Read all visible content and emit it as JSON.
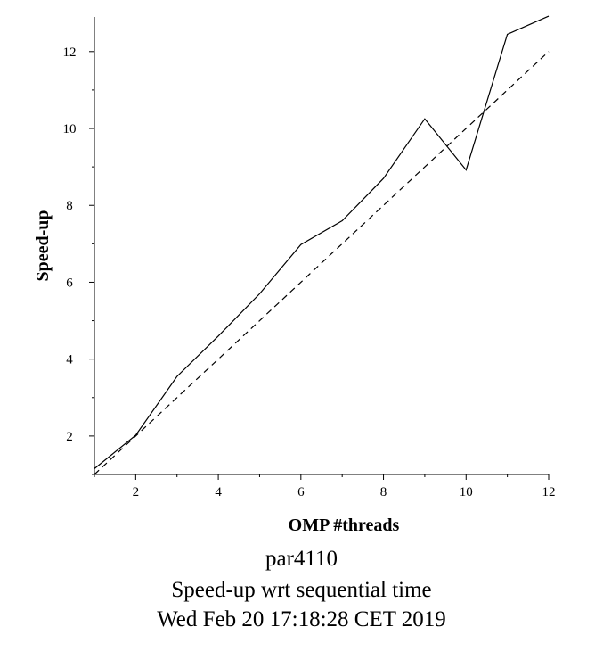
{
  "chart_data": {
    "type": "line",
    "xlabel": "OMP #threads",
    "ylabel": "Speed-up",
    "xlim": [
      1,
      12
    ],
    "ylim": [
      1,
      12.9
    ],
    "x_ticks": [
      2,
      4,
      6,
      8,
      10,
      12
    ],
    "y_ticks": [
      2,
      4,
      6,
      8,
      10,
      12
    ],
    "grid": false,
    "series": [
      {
        "x": [
          1,
          2,
          3,
          4,
          5,
          6,
          7,
          8,
          9,
          10,
          11,
          12
        ],
        "values": [
          1.15,
          2.02,
          3.55,
          4.6,
          5.7,
          6.98,
          7.6,
          8.7,
          10.25,
          8.92,
          12.45,
          12.92
        ],
        "style": "solid",
        "color": "#000000"
      },
      {
        "x": [
          1,
          12
        ],
        "values": [
          1,
          12
        ],
        "style": "dashed",
        "color": "#000000"
      }
    ]
  },
  "captions": {
    "line1": "par4110",
    "line2": "Speed-up wrt sequential time",
    "line3": "Wed Feb 20 17:18:28 CET 2019"
  }
}
